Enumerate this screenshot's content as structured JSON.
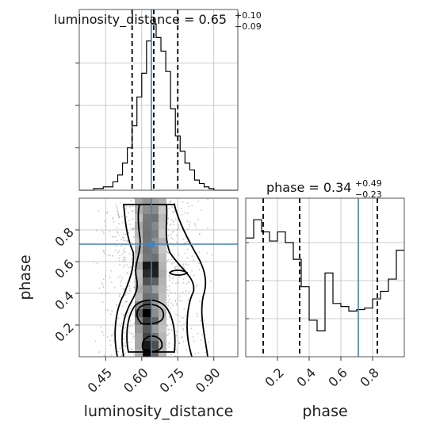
{
  "chart_data": [
    {
      "type": "histogram",
      "panel": "1d-marginal",
      "parameter": "luminosity_distance",
      "title": {
        "prefix": "luminosity_distance = ",
        "value": "0.65",
        "plus": "+0.10",
        "minus": "−0.09"
      },
      "xlim": [
        0.34,
        1.0
      ],
      "ylim": [
        0,
        1.0
      ],
      "bins": [
        0.34,
        0.36,
        0.38,
        0.4,
        0.42,
        0.44,
        0.46,
        0.48,
        0.5,
        0.52,
        0.54,
        0.56,
        0.58,
        0.6,
        0.62,
        0.64,
        0.66,
        0.68,
        0.7,
        0.72,
        0.74,
        0.76,
        0.78,
        0.8,
        0.82,
        0.84,
        0.86,
        0.88,
        0.9,
        0.92,
        0.94,
        0.96,
        0.98,
        1.0
      ],
      "counts": [
        0,
        0,
        0,
        0.01,
        0.01,
        0.02,
        0.02,
        0.05,
        0.09,
        0.16,
        0.25,
        0.38,
        0.55,
        0.69,
        0.88,
        0.98,
        0.9,
        0.82,
        0.7,
        0.48,
        0.32,
        0.23,
        0.16,
        0.12,
        0.06,
        0.04,
        0.02,
        0.01,
        0,
        0,
        0,
        0,
        0
      ],
      "quantiles": [
        0.56,
        0.65,
        0.75
      ],
      "truth": 0.64,
      "yticks": [
        0.25,
        0.5,
        0.75
      ]
    },
    {
      "type": "histogram",
      "panel": "1d-marginal",
      "parameter": "phase",
      "title": {
        "prefix": "phase = ",
        "value": "0.34",
        "plus": "+0.49",
        "minus": "−0.23"
      },
      "xlabel": "phase",
      "xlim": [
        0.0,
        1.0
      ],
      "ylim": [
        0,
        1.0
      ],
      "xticks": [
        0.2,
        0.4,
        0.6,
        0.8
      ],
      "xtick_labels": [
        "0.2",
        "0.4",
        "0.6",
        "0.8"
      ],
      "bins": [
        0.0,
        0.05,
        0.1,
        0.15,
        0.2,
        0.25,
        0.3,
        0.35,
        0.4,
        0.45,
        0.5,
        0.55,
        0.6,
        0.65,
        0.7,
        0.75,
        0.8,
        0.85,
        0.9,
        0.95,
        1.0
      ],
      "counts": [
        0.78,
        0.9,
        0.82,
        0.76,
        0.82,
        0.75,
        0.64,
        0.46,
        0.24,
        0.17,
        0.55,
        0.35,
        0.33,
        0.3,
        0.31,
        0.32,
        0.38,
        0.43,
        0.51,
        0.7
      ],
      "quantiles": [
        0.11,
        0.34,
        0.83
      ],
      "truth": 0.71,
      "yticks": [
        0.25,
        0.5,
        0.75
      ]
    },
    {
      "type": "scatter",
      "panel": "2d-joint",
      "xlabel": "luminosity_distance",
      "ylabel": "phase",
      "xlim": [
        0.34,
        1.0
      ],
      "ylim": [
        0.0,
        1.0
      ],
      "xticks": [
        0.45,
        0.6,
        0.75,
        0.9
      ],
      "xtick_labels": [
        "0.45",
        "0.60",
        "0.75",
        "0.90"
      ],
      "yticks": [
        0.2,
        0.4,
        0.6,
        0.8
      ],
      "ytick_labels": [
        "0.2",
        "0.4",
        "0.6",
        "0.8"
      ],
      "truth": [
        0.64,
        0.71
      ],
      "density_peaks": [
        [
          0.61,
          0.27
        ],
        [
          0.63,
          0.06
        ],
        [
          0.64,
          0.55
        ]
      ],
      "legend": "none"
    }
  ]
}
